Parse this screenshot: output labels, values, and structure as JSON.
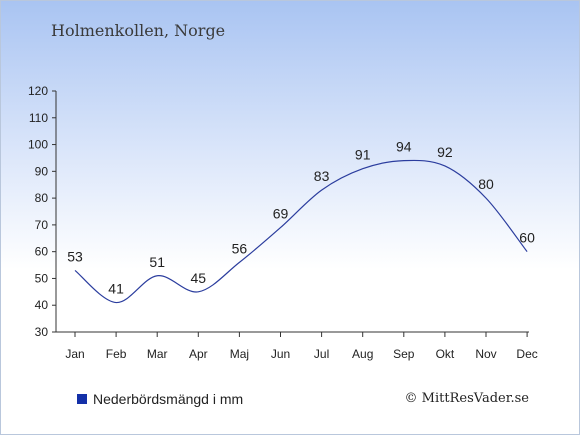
{
  "title": "Holmenkollen, Norge",
  "legend_label": "Nederbördsmängd i mm",
  "copyright": "© MittResVader.se",
  "colors": {
    "series": "#2b3d9e",
    "legend_swatch": "#1330a8",
    "axis": "#333333"
  },
  "chart_data": {
    "type": "line",
    "categories": [
      "Jan",
      "Feb",
      "Mar",
      "Apr",
      "Maj",
      "Jun",
      "Jul",
      "Aug",
      "Sep",
      "Okt",
      "Nov",
      "Dec"
    ],
    "series": [
      {
        "name": "Nederbördsmängd i mm",
        "values": [
          53,
          41,
          51,
          45,
          56,
          69,
          83,
          91,
          94,
          92,
          80,
          60
        ]
      }
    ],
    "ylim": [
      30,
      120
    ],
    "yticks": [
      30,
      40,
      50,
      60,
      70,
      80,
      90,
      100,
      110,
      120
    ],
    "grid": false,
    "legend_position": "bottom-left"
  }
}
